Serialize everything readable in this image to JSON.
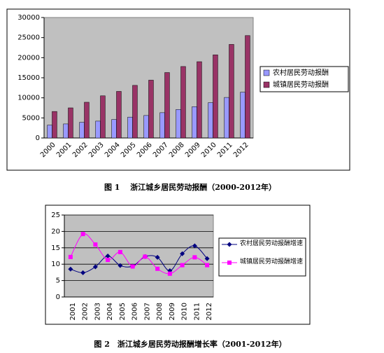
{
  "chart_data": [
    {
      "type": "bar",
      "categories": [
        "2000",
        "2001",
        "2002",
        "2003",
        "2004",
        "2005",
        "2006",
        "2007",
        "2008",
        "2009",
        "2010",
        "2011",
        "2012"
      ],
      "series": [
        {
          "name": "农村居民劳动报酬",
          "color": "#9999ff",
          "values": [
            3200,
            3500,
            3900,
            4200,
            4600,
            5200,
            5600,
            6300,
            7100,
            7800,
            8800,
            10100,
            11400
          ]
        },
        {
          "name": "城镇居民劳动报酬",
          "color": "#993366",
          "values": [
            6600,
            7500,
            8900,
            10500,
            11600,
            13100,
            14400,
            16300,
            17800,
            19000,
            20700,
            23300,
            25500
          ]
        }
      ],
      "ylim": [
        0,
        30000
      ],
      "yticks": [
        0,
        5000,
        10000,
        15000,
        20000,
        25000,
        30000
      ],
      "grid": false,
      "legend": "right"
    },
    {
      "type": "line",
      "categories": [
        "2001",
        "2002",
        "2003",
        "2004",
        "2005",
        "2006",
        "2007",
        "2008",
        "2009",
        "2010",
        "2011",
        "2012"
      ],
      "series": [
        {
          "name": "农村居民劳动报酬增速",
          "color": "#000080",
          "marker": "diamond",
          "values": [
            8.5,
            7.4,
            9.2,
            12.5,
            9.6,
            9.4,
            12.3,
            12.1,
            8.0,
            13.2,
            15.6,
            11.7
          ]
        },
        {
          "name": "城镇居民劳动报酬增速",
          "color": "#ff00ff",
          "marker": "square",
          "values": [
            12.2,
            19.2,
            16.0,
            11.3,
            13.7,
            9.3,
            12.3,
            8.6,
            7.1,
            9.7,
            12.1,
            9.7
          ]
        }
      ],
      "ylim": [
        0,
        25
      ],
      "yticks": [
        0,
        5,
        10,
        15,
        20,
        25
      ],
      "grid": true,
      "legend": "right"
    }
  ],
  "captions": [
    "图 1　 浙江城乡居民劳动报酬（2000-2012年）",
    "图 2　浙江城乡居民劳动报酬增长率（2001-2012年）"
  ]
}
